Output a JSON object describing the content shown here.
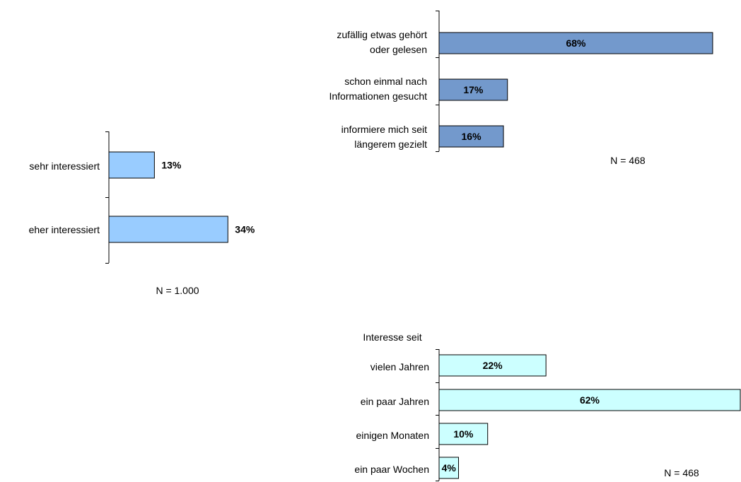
{
  "chart_data": [
    {
      "type": "bar",
      "orientation": "horizontal",
      "categories": [
        "sehr interessiert",
        "eher interessiert"
      ],
      "values": [
        13,
        34
      ],
      "value_labels": [
        "13%",
        "34%"
      ],
      "label_position": "outside",
      "xlim": [
        0,
        100
      ],
      "bar_color": "#99ccff",
      "note": "N = 1.000"
    },
    {
      "type": "bar",
      "orientation": "horizontal",
      "categories": [
        "zufällig etwas gehört oder gelesen",
        "schon einmal nach Informationen gesucht",
        "informiere mich seit längerem gezielt"
      ],
      "category_lines": [
        [
          "zufällig etwas gehört",
          "oder gelesen"
        ],
        [
          "schon einmal nach",
          "Informationen gesucht"
        ],
        [
          "informiere mich seit",
          "längerem gezielt"
        ]
      ],
      "values": [
        68,
        17,
        16
      ],
      "value_labels": [
        "68%",
        "17%",
        "16%"
      ],
      "label_position": "inside",
      "xlim": [
        0,
        100
      ],
      "bar_color": "#7399cc",
      "note": "N = 468"
    },
    {
      "type": "bar",
      "orientation": "horizontal",
      "title": "Interesse seit",
      "categories": [
        "vielen Jahren",
        "ein paar Jahren",
        "einigen Monaten",
        "ein paar Wochen"
      ],
      "values": [
        22,
        62,
        10,
        4
      ],
      "value_labels": [
        "22%",
        "62%",
        "10%",
        "4%"
      ],
      "label_position": "inside",
      "xlim": [
        0,
        62
      ],
      "bar_color": "#ccffff",
      "note": "N = 468"
    }
  ]
}
